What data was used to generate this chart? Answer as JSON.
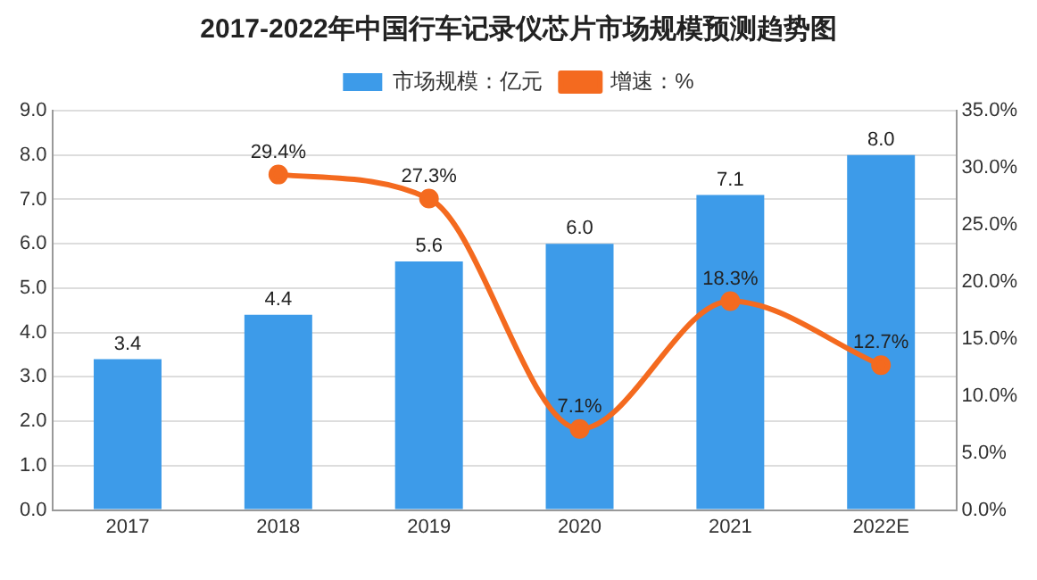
{
  "chart_data": {
    "type": "bar",
    "title": "2017-2022年中国行车记录仪芯片市场规模预测趋势图",
    "categories": [
      "2017",
      "2018",
      "2019",
      "2020",
      "2021",
      "2022E"
    ],
    "series": [
      {
        "name": "市场规模：亿元",
        "color": "#3d9be9",
        "values": [
          3.4,
          4.4,
          5.6,
          6.0,
          7.1,
          8.0
        ],
        "value_labels": [
          "3.4",
          "4.4",
          "5.6",
          "6.0",
          "7.1",
          "8.0"
        ]
      },
      {
        "name": "增速：%",
        "type": "line",
        "axis": "y2",
        "color": "#f46a1f",
        "marker": "circle",
        "values": [
          null,
          29.4,
          27.3,
          7.1,
          18.3,
          12.7
        ],
        "value_labels": [
          null,
          "29.4%",
          "27.3%",
          "7.1%",
          "18.3%",
          "12.7%"
        ]
      }
    ],
    "ylim": [
      0,
      9
    ],
    "yticks": [
      {
        "value": 0,
        "label": "0.0"
      },
      {
        "value": 1,
        "label": "1.0"
      },
      {
        "value": 2,
        "label": "2.0"
      },
      {
        "value": 3,
        "label": "3.0"
      },
      {
        "value": 4,
        "label": "4.0"
      },
      {
        "value": 5,
        "label": "5.0"
      },
      {
        "value": 6,
        "label": "6.0"
      },
      {
        "value": 7,
        "label": "7.0"
      },
      {
        "value": 8,
        "label": "8.0"
      },
      {
        "value": 9,
        "label": "9.0"
      }
    ],
    "y2lim": [
      0,
      35
    ],
    "y2ticks": [
      {
        "value": 0,
        "label": "0.0%"
      },
      {
        "value": 5,
        "label": "5.0%"
      },
      {
        "value": 10,
        "label": "10.0%"
      },
      {
        "value": 15,
        "label": "15.0%"
      },
      {
        "value": 20,
        "label": "20.0%"
      },
      {
        "value": 25,
        "label": "25.0%"
      },
      {
        "value": 30,
        "label": "30.0%"
      },
      {
        "value": 35,
        "label": "35.0%"
      }
    ],
    "grid": "y",
    "legend": "top"
  }
}
